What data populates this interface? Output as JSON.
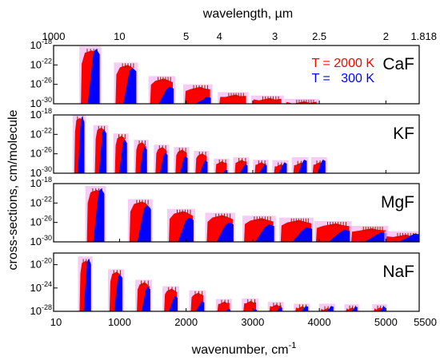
{
  "chart_data": {
    "type": "area",
    "xlabel": "wavenumber, cm",
    "xlabel_exponent": "-1",
    "ylabel": "cross-sections, cm/molecule",
    "top_axis_label": "wavelength, µm",
    "top_ticks": [
      {
        "label": "1000",
        "wavenumber": 10
      },
      {
        "label": "10",
        "wavenumber": 1000
      },
      {
        "label": "5",
        "wavenumber": 2000
      },
      {
        "label": "4",
        "wavenumber": 2500
      },
      {
        "label": "3",
        "wavenumber": 3333
      },
      {
        "label": "2.5",
        "wavenumber": 4000
      },
      {
        "label": "2",
        "wavenumber": 5000
      },
      {
        "label": "1.818",
        "wavenumber": 5500
      }
    ],
    "x_ticks": [
      {
        "label": "10",
        "value": 10
      },
      {
        "label": "1000",
        "value": 1000
      },
      {
        "label": "2000",
        "value": 2000
      },
      {
        "label": "3000",
        "value": 3000
      },
      {
        "label": "4000",
        "value": 4000
      },
      {
        "label": "5000",
        "value": 5000
      },
      {
        "label": "5500",
        "value": 5500
      }
    ],
    "xlim": [
      10,
      5500
    ],
    "legend": [
      {
        "text": "T = 2000 K",
        "color": "#ff0000"
      },
      {
        "text": "T =   300 K",
        "color": "#0000ff"
      }
    ],
    "legend_position": "top-right of first panel",
    "colors": {
      "hot": "#ff0000",
      "cold": "#0000ff",
      "halo": "#f2b6f2",
      "tip": "#8b2500"
    },
    "panels": [
      {
        "molecule": "CaF",
        "ylim_exp": [
          -30,
          -18
        ],
        "yticks": [
          {
            "base": "10",
            "exp": "-18",
            "value": -18
          },
          {
            "base": "10",
            "exp": "-22",
            "value": -22
          },
          {
            "base": "10",
            "exp": "-26",
            "value": -26
          },
          {
            "base": "10",
            "exp": "-30",
            "value": -30
          }
        ],
        "bands": [
          {
            "v": 1,
            "start": 420,
            "end": 690,
            "peak_hot": -19.0,
            "peak_cold": -18.7
          },
          {
            "v": 2,
            "start": 940,
            "end": 1240,
            "peak_hot": -22.0,
            "peak_cold": -22.6
          },
          {
            "v": 3,
            "start": 1460,
            "end": 1800,
            "peak_hot": -24.8,
            "peak_cold": -26.5
          },
          {
            "v": 4,
            "start": 1980,
            "end": 2360,
            "peak_hot": -26.5,
            "peak_cold": -28.6
          },
          {
            "v": 5,
            "start": 2500,
            "end": 2900,
            "peak_hot": -28.1,
            "peak_cold": -30.0
          },
          {
            "v": 6,
            "start": 3000,
            "end": 3430,
            "peak_hot": -28.8,
            "peak_cold": -30.0
          },
          {
            "v": 7,
            "start": 3500,
            "end": 3960,
            "peak_hot": -29.5,
            "peak_cold": -30.0
          }
        ]
      },
      {
        "molecule": "KF",
        "ylim_exp": [
          -30,
          -18
        ],
        "yticks": [
          {
            "base": "10",
            "exp": "-18",
            "value": -18
          },
          {
            "base": "10",
            "exp": "-22",
            "value": -22
          },
          {
            "base": "10",
            "exp": "-26",
            "value": -26
          },
          {
            "base": "10",
            "exp": "-30",
            "value": -30
          }
        ],
        "bands": [
          {
            "v": 1,
            "start": 320,
            "end": 460,
            "peak_hot": -18.6,
            "peak_cold": -18.3
          },
          {
            "v": 2,
            "start": 630,
            "end": 790,
            "peak_hot": -20.6,
            "peak_cold": -20.9
          },
          {
            "v": 3,
            "start": 930,
            "end": 1100,
            "peak_hot": -22.3,
            "peak_cold": -23.1
          },
          {
            "v": 4,
            "start": 1240,
            "end": 1400,
            "peak_hot": -23.6,
            "peak_cold": -24.6
          },
          {
            "v": 5,
            "start": 1540,
            "end": 1710,
            "peak_hot": -24.6,
            "peak_cold": -25.8
          },
          {
            "v": 6,
            "start": 1840,
            "end": 2010,
            "peak_hot": -25.1,
            "peak_cold": -26.5
          },
          {
            "v": 7,
            "start": 2140,
            "end": 2310,
            "peak_hot": -25.9,
            "peak_cold": -27.4
          },
          {
            "v": 8,
            "start": 2440,
            "end": 2610,
            "peak_hot": -27.5,
            "peak_cold": -29.3
          },
          {
            "v": 9,
            "start": 2730,
            "end": 2910,
            "peak_hot": -27.2,
            "peak_cold": -28.2
          },
          {
            "v": 10,
            "start": 3030,
            "end": 3200,
            "peak_hot": -27.7,
            "peak_cold": -28.2
          },
          {
            "v": 11,
            "start": 3320,
            "end": 3500,
            "peak_hot": -28.1,
            "peak_cold": -27.8
          },
          {
            "v": 12,
            "start": 3610,
            "end": 3800,
            "peak_hot": -27.8,
            "peak_cold": -27.2
          },
          {
            "v": 13,
            "start": 3900,
            "end": 4080,
            "peak_hot": -27.7,
            "peak_cold": -27.2
          }
        ]
      },
      {
        "molecule": "MgF",
        "ylim_exp": [
          -30,
          -18
        ],
        "yticks": [
          {
            "base": "10",
            "exp": "-18",
            "value": -18
          },
          {
            "base": "10",
            "exp": "-22",
            "value": -22
          },
          {
            "base": "10",
            "exp": "-26",
            "value": -26
          },
          {
            "base": "10",
            "exp": "-30",
            "value": -30
          }
        ],
        "bands": [
          {
            "v": 1,
            "start": 510,
            "end": 760,
            "peak_hot": -19.3,
            "peak_cold": -19.0
          },
          {
            "v": 2,
            "start": 1150,
            "end": 1460,
            "peak_hot": -21.7,
            "peak_cold": -22.5
          },
          {
            "v": 3,
            "start": 1740,
            "end": 2100,
            "peak_hot": -23.7,
            "peak_cold": -25.0
          },
          {
            "v": 4,
            "start": 2310,
            "end": 2700,
            "peak_hot": -24.5,
            "peak_cold": -26.0
          },
          {
            "v": 5,
            "start": 2870,
            "end": 3310,
            "peak_hot": -25.1,
            "peak_cold": -26.4
          },
          {
            "v": 6,
            "start": 3420,
            "end": 3880,
            "peak_hot": -25.5,
            "peak_cold": -27.0
          },
          {
            "v": 7,
            "start": 3950,
            "end": 4450,
            "peak_hot": -26.2,
            "peak_cold": -27.5
          },
          {
            "v": 8,
            "start": 4480,
            "end": 5000,
            "peak_hot": -27.2,
            "peak_cold": -28.0
          },
          {
            "v": 9,
            "start": 5000,
            "end": 5500,
            "peak_hot": -28.5,
            "peak_cold": -28.3
          }
        ]
      },
      {
        "molecule": "NaF",
        "ylim_exp": [
          -28,
          -18
        ],
        "yticks": [
          {
            "base": "10",
            "exp": "-20",
            "value": -20
          },
          {
            "base": "10",
            "exp": "-24",
            "value": -24
          },
          {
            "base": "10",
            "exp": "-28",
            "value": -28
          }
        ],
        "bands": [
          {
            "v": 1,
            "start": 400,
            "end": 560,
            "peak_hot": -19.3,
            "peak_cold": -19.0
          },
          {
            "v": 2,
            "start": 850,
            "end": 1030,
            "peak_hot": -21.2,
            "peak_cold": -21.6
          },
          {
            "v": 3,
            "start": 1260,
            "end": 1450,
            "peak_hot": -23.0,
            "peak_cold": -23.8
          },
          {
            "v": 4,
            "start": 1670,
            "end": 1860,
            "peak_hot": -24.1,
            "peak_cold": -25.4
          },
          {
            "v": 5,
            "start": 2070,
            "end": 2260,
            "peak_hot": -24.8,
            "peak_cold": -26.3
          },
          {
            "v": 6,
            "start": 2470,
            "end": 2650,
            "peak_hot": -26.3,
            "peak_cold": -27.6
          },
          {
            "v": 7,
            "start": 2860,
            "end": 3050,
            "peak_hot": -26.2,
            "peak_cold": -27.7
          },
          {
            "v": 8,
            "start": 3250,
            "end": 3430,
            "peak_hot": -26.8,
            "peak_cold": -27.3
          },
          {
            "v": 9,
            "start": 3640,
            "end": 3820,
            "peak_hot": -27.1,
            "peak_cold": -27.1
          },
          {
            "v": 10,
            "start": 4020,
            "end": 4200,
            "peak_hot": -27.4,
            "peak_cold": -27.1
          },
          {
            "v": 11,
            "start": 4400,
            "end": 4560,
            "peak_hot": -27.3,
            "peak_cold": -27.2
          },
          {
            "v": 12,
            "start": 4820,
            "end": 4980,
            "peak_hot": -27.3,
            "peak_cold": -27.2
          }
        ]
      }
    ]
  }
}
